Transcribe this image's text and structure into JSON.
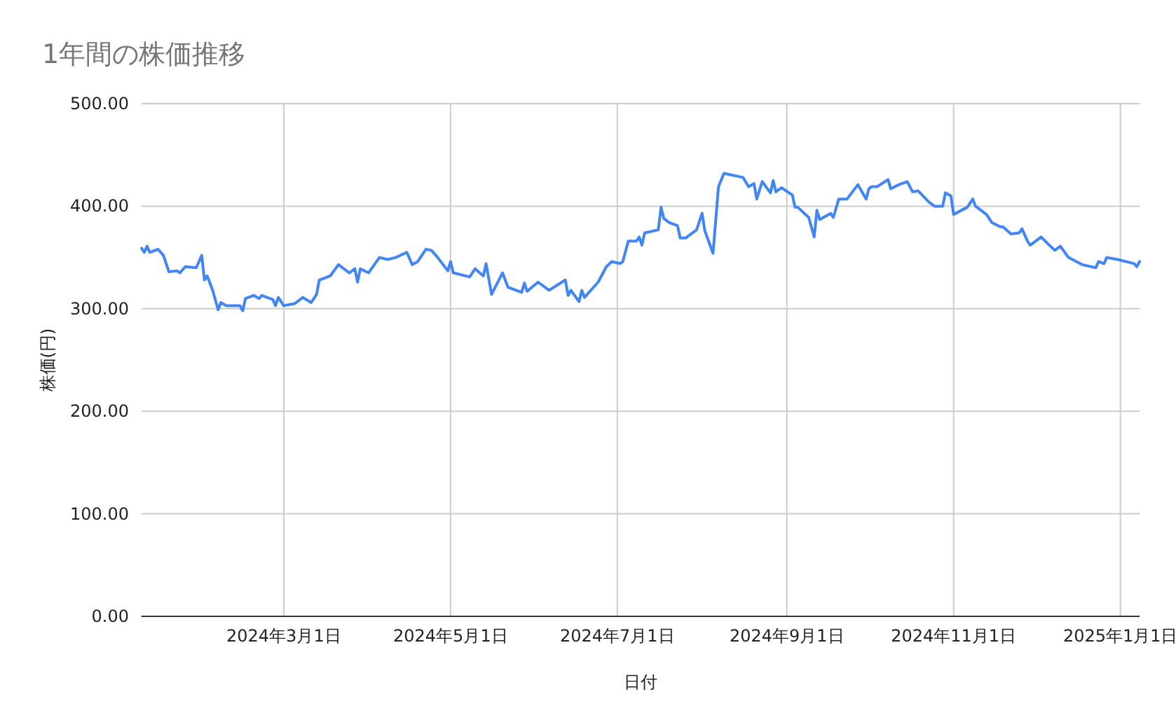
{
  "chart_data": {
    "type": "line",
    "title": "1年間の株価推移",
    "xlabel": "日付",
    "ylabel": "株価(円)",
    "xlim": [
      "2024-01-09",
      "2025-01-08"
    ],
    "ylim": [
      0,
      500
    ],
    "xticks": [
      {
        "value": "2024-03-01",
        "label": "2024年3月1日"
      },
      {
        "value": "2024-05-01",
        "label": "2024年5月1日"
      },
      {
        "value": "2024-07-01",
        "label": "2024年7月1日"
      },
      {
        "value": "2024-09-01",
        "label": "2024年9月1日"
      },
      {
        "value": "2024-11-01",
        "label": "2024年11月1日"
      },
      {
        "value": "2025-01-01",
        "label": "2025年1月1日"
      }
    ],
    "yticks": [
      {
        "value": 0,
        "label": "0.00"
      },
      {
        "value": 100,
        "label": "100.00"
      },
      {
        "value": 200,
        "label": "200.00"
      },
      {
        "value": 300,
        "label": "300.00"
      },
      {
        "value": 400,
        "label": "400.00"
      },
      {
        "value": 500,
        "label": "500.00"
      }
    ],
    "grid": true,
    "marker": "none",
    "line_style": "solid",
    "series": [
      {
        "color": "#4285f4",
        "x": [
          "2024-01-09",
          "2024-01-10",
          "2024-01-11",
          "2024-01-12",
          "2024-01-15",
          "2024-01-17",
          "2024-01-19",
          "2024-01-22",
          "2024-01-23",
          "2024-01-25",
          "2024-01-29",
          "2024-01-30",
          "2024-01-31",
          "2024-02-01",
          "2024-02-02",
          "2024-02-04",
          "2024-02-06",
          "2024-02-07",
          "2024-02-09",
          "2024-02-14",
          "2024-02-15",
          "2024-02-16",
          "2024-02-19",
          "2024-02-21",
          "2024-02-22",
          "2024-02-26",
          "2024-02-27",
          "2024-02-28",
          "2024-03-01",
          "2024-03-05",
          "2024-03-08",
          "2024-03-11",
          "2024-03-13",
          "2024-03-14",
          "2024-03-18",
          "2024-03-21",
          "2024-03-25",
          "2024-03-27",
          "2024-03-28",
          "2024-03-29",
          "2024-04-01",
          "2024-04-05",
          "2024-04-08",
          "2024-04-11",
          "2024-04-15",
          "2024-04-17",
          "2024-04-19",
          "2024-04-22",
          "2024-04-24",
          "2024-04-26",
          "2024-04-30",
          "2024-05-01",
          "2024-05-02",
          "2024-05-08",
          "2024-05-10",
          "2024-05-13",
          "2024-05-14",
          "2024-05-16",
          "2024-05-20",
          "2024-05-22",
          "2024-05-27",
          "2024-05-28",
          "2024-05-29",
          "2024-06-02",
          "2024-06-06",
          "2024-06-12",
          "2024-06-13",
          "2024-06-14",
          "2024-06-17",
          "2024-06-18",
          "2024-06-19",
          "2024-06-24",
          "2024-06-27",
          "2024-06-29",
          "2024-07-02",
          "2024-07-03",
          "2024-07-05",
          "2024-07-08",
          "2024-07-09",
          "2024-07-10",
          "2024-07-11",
          "2024-07-16",
          "2024-07-17",
          "2024-07-18",
          "2024-07-20",
          "2024-07-23",
          "2024-07-24",
          "2024-07-26",
          "2024-07-30",
          "2024-08-01",
          "2024-08-02",
          "2024-08-05",
          "2024-08-07",
          "2024-08-09",
          "2024-08-16",
          "2024-08-18",
          "2024-08-20",
          "2024-08-21",
          "2024-08-23",
          "2024-08-26",
          "2024-08-27",
          "2024-08-28",
          "2024-08-30",
          "2024-09-03",
          "2024-09-04",
          "2024-09-05",
          "2024-09-09",
          "2024-09-11",
          "2024-09-12",
          "2024-09-13",
          "2024-09-17",
          "2024-09-18",
          "2024-09-20",
          "2024-09-23",
          "2024-09-27",
          "2024-09-30",
          "2024-10-01",
          "2024-10-02",
          "2024-10-04",
          "2024-10-08",
          "2024-10-09",
          "2024-10-12",
          "2024-10-15",
          "2024-10-17",
          "2024-10-19",
          "2024-10-23",
          "2024-10-25",
          "2024-10-28",
          "2024-10-29",
          "2024-10-31",
          "2024-11-01",
          "2024-11-06",
          "2024-11-08",
          "2024-11-09",
          "2024-11-13",
          "2024-11-15",
          "2024-11-18",
          "2024-11-19",
          "2024-11-22",
          "2024-11-25",
          "2024-11-26",
          "2024-11-28",
          "2024-11-29",
          "2024-12-03",
          "2024-12-06",
          "2024-12-08",
          "2024-12-10",
          "2024-12-13",
          "2024-12-18",
          "2024-12-23",
          "2024-12-24",
          "2024-12-26",
          "2024-12-27",
          "2024-12-31",
          "2025-01-06",
          "2025-01-07",
          "2025-01-08"
        ],
        "values": [
          359,
          355,
          361,
          355,
          358,
          352,
          336,
          337,
          335,
          341,
          340,
          346,
          352,
          328,
          332,
          318,
          299,
          306,
          303,
          303,
          298,
          310,
          313,
          310,
          313,
          309,
          303,
          311,
          303,
          305,
          311,
          306,
          314,
          328,
          332,
          343,
          335,
          339,
          326,
          339,
          335,
          350,
          348,
          350,
          355,
          343,
          346,
          358,
          357,
          351,
          337,
          346,
          335,
          331,
          339,
          332,
          344,
          314,
          335,
          321,
          316,
          325,
          317,
          326,
          318,
          328,
          313,
          318,
          307,
          318,
          311,
          326,
          341,
          346,
          344,
          346,
          366,
          366,
          370,
          362,
          374,
          377,
          399,
          388,
          384,
          381,
          369,
          369,
          377,
          393,
          376,
          354,
          419,
          432,
          428,
          419,
          422,
          407,
          424,
          413,
          425,
          414,
          418,
          411,
          399,
          399,
          389,
          370,
          396,
          387,
          393,
          389,
          407,
          407,
          421,
          407,
          417,
          419,
          419,
          426,
          417,
          421,
          424,
          414,
          415,
          404,
          400,
          400,
          413,
          410,
          392,
          399,
          407,
          400,
          392,
          384,
          380,
          380,
          373,
          374,
          378,
          366,
          362,
          370,
          362,
          357,
          361,
          350,
          343,
          340,
          346,
          344,
          350,
          348,
          344,
          341,
          346
        ]
      }
    ]
  }
}
